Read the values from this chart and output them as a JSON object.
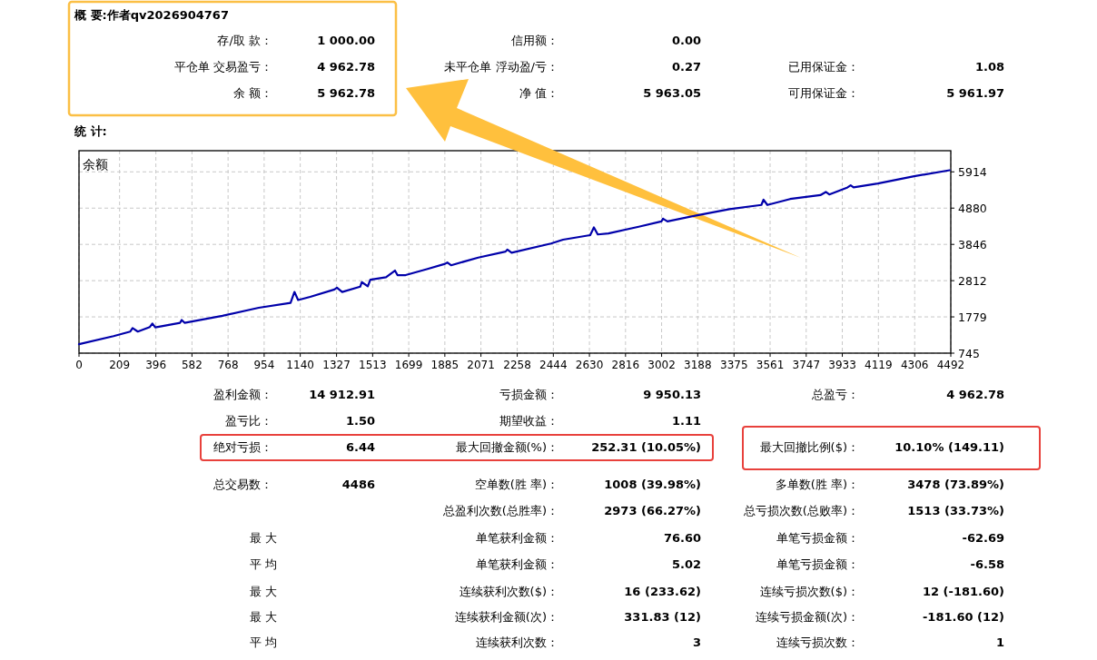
{
  "chart_data": {
    "type": "line",
    "title": "概 要:作者qv2026904767",
    "subtitle": "统 计:",
    "ylabel": "余额",
    "x": [
      0,
      178,
      264,
      276,
      303,
      365,
      378,
      393,
      521,
      529,
      544,
      739,
      926,
      1090,
      1110,
      1129,
      1191,
      1316,
      1329,
      1356,
      1449,
      1457,
      1488,
      1501,
      1582,
      1628,
      1641,
      1683,
      1792,
      1886,
      1898,
      1917,
      2057,
      2198,
      2207,
      2229,
      2432,
      2494,
      2634,
      2653,
      2673,
      2728,
      2884,
      3001,
      3009,
      3032,
      3180,
      3352,
      3516,
      3527,
      3547,
      3664,
      3820,
      3848,
      3866,
      3960,
      3976,
      3991,
      4116,
      4303,
      4486
    ],
    "series": [
      {
        "color": "#0000aa",
        "values": [
          1000,
          1230,
          1360,
          1460,
          1360,
          1490,
          1590,
          1480,
          1610,
          1690,
          1610,
          1810,
          2040,
          2180,
          2490,
          2260,
          2350,
          2560,
          2610,
          2490,
          2640,
          2770,
          2650,
          2840,
          2910,
          3100,
          2970,
          2970,
          3140,
          3290,
          3330,
          3250,
          3470,
          3640,
          3700,
          3610,
          3870,
          3980,
          4110,
          4330,
          4130,
          4160,
          4350,
          4500,
          4580,
          4500,
          4670,
          4850,
          4970,
          5120,
          4970,
          5140,
          5250,
          5340,
          5270,
          5470,
          5530,
          5470,
          5580,
          5790,
          5960
        ]
      }
    ],
    "xlim": [
      0,
      4492
    ],
    "xticks": [
      0,
      209,
      396,
      582,
      768,
      954,
      1140,
      1327,
      1513,
      1699,
      1885,
      2071,
      2258,
      2444,
      2630,
      2816,
      3002,
      3188,
      3375,
      3561,
      3747,
      3933,
      4119,
      4306,
      4492
    ],
    "ylim": [
      745,
      6517
    ],
    "yticks": [
      745,
      1779,
      2812,
      3846,
      4880,
      5914
    ],
    "grid": true,
    "annotations": [
      "存/取 款：",
      "1 000.00",
      "信用额：",
      "0.00",
      "平仓单 交易盈亏：",
      "4 962.78",
      "未平仓单 浮动盈/亏：",
      "0.27",
      "已用保证金：",
      "1.08",
      "余 额：",
      "5 962.78",
      "净 值：",
      "5 963.05",
      "可用保证金：",
      "5 961.97",
      "盈利金额：",
      "14 912.91",
      "亏损金额：",
      "9 950.13",
      "总盈亏：",
      "4 962.78",
      "盈亏比：",
      "1.50",
      "期望收益：",
      "1.11",
      "绝对亏损：",
      "6.44",
      "最大回撤金额(%)：",
      "252.31 (10.05%)",
      "最大回撤比例($)：",
      "10.10% (149.11)",
      "总交易数：",
      "4486",
      "空单数(胜 率)：",
      "1008 (39.98%)",
      "多单数(胜 率)：",
      "3478 (73.89%)",
      "总盈利次数(总胜率)：",
      "2973 (66.27%)",
      "总亏损次数(总败率)：",
      "1513 (33.73%)",
      "最 大",
      "单笔获利金额：",
      "76.60",
      "单笔亏损金额：",
      "-62.69",
      "平 均",
      "单笔获利金额：",
      "5.02",
      "单笔亏损金额：",
      "-6.58",
      "最 大",
      "连续获利次数($)：",
      "16 (233.62)",
      "连续亏损次数($)：",
      "12 (-181.60)",
      "最 大",
      "连续获利金额(次)：",
      "331.83 (12)",
      "连续亏损金额(次)：",
      "-181.60 (12)",
      "平 均",
      "连续获利次数：",
      "3",
      "连续亏损次数：",
      "1"
    ]
  }
}
